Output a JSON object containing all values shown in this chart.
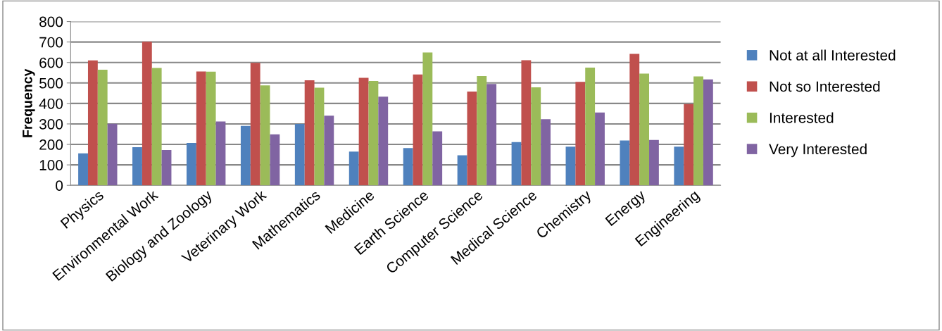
{
  "chart_data": {
    "type": "bar",
    "ylabel": "Frequency",
    "categories": [
      "Physics",
      "Environmental Work",
      "Biology and Zoology",
      "Veterinary Work",
      "Mathematics",
      "Medicine",
      "Earth Science",
      "Computer Science",
      "Medical Science",
      "Chemistry",
      "Energy",
      "Engineering"
    ],
    "series": [
      {
        "name": "Not at all Interested",
        "color": "#4f81bd",
        "values": [
          156,
          186,
          207,
          290,
          300,
          165,
          182,
          147,
          211,
          189,
          219,
          189
        ]
      },
      {
        "name": "Not so Interested",
        "color": "#c0504d",
        "values": [
          610,
          701,
          556,
          598,
          513,
          525,
          541,
          458,
          611,
          505,
          642,
          397
        ]
      },
      {
        "name": "Interested",
        "color": "#9bbb59",
        "values": [
          565,
          573,
          555,
          488,
          477,
          510,
          649,
          534,
          479,
          575,
          546,
          532
        ]
      },
      {
        "name": "Very Interested",
        "color": "#8064a2",
        "values": [
          301,
          173,
          312,
          249,
          340,
          433,
          264,
          495,
          323,
          356,
          222,
          517
        ]
      }
    ],
    "ylim": [
      0,
      800
    ],
    "yticks": [
      0,
      100,
      200,
      300,
      400,
      500,
      600,
      700,
      800
    ],
    "grid": "y",
    "legend": "right"
  }
}
